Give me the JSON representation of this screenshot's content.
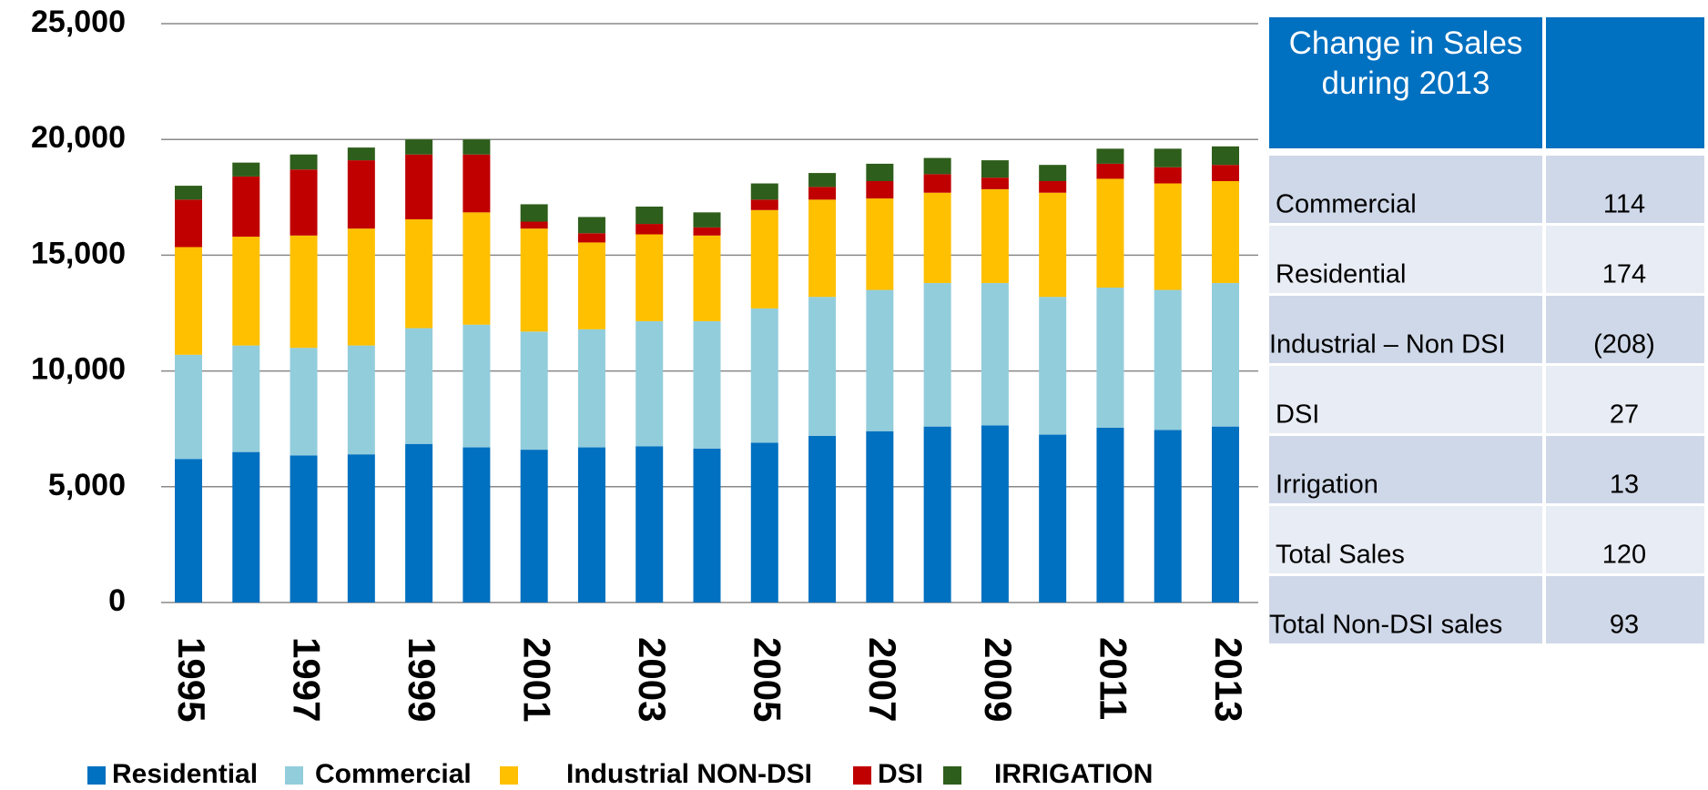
{
  "chart_data": {
    "type": "stacked_bar",
    "categories": [
      "1995",
      null,
      "1997",
      null,
      "1999",
      null,
      "2001",
      null,
      "2003",
      null,
      "2005",
      null,
      "2007",
      null,
      "2009",
      null,
      "2011",
      null,
      "2013"
    ],
    "series": [
      {
        "name": "Residential",
        "color": "#0070c0",
        "values": [
          6200,
          6500,
          6350,
          6400,
          6850,
          6700,
          6600,
          6700,
          6750,
          6650,
          6900,
          7200,
          7400,
          7600,
          7650,
          7250,
          7550,
          7450,
          7600
        ]
      },
      {
        "name": "Commercial",
        "color": "#92cddc",
        "values": [
          4500,
          4600,
          4650,
          4700,
          5000,
          5300,
          5100,
          5100,
          5400,
          5500,
          5800,
          6000,
          6100,
          6200,
          6150,
          5950,
          6050,
          6050,
          6200
        ]
      },
      {
        "name": "Industrial NON-DSI",
        "color": "#ffc000",
        "values": [
          4650,
          4700,
          4850,
          5050,
          4700,
          4850,
          4450,
          3750,
          3750,
          3700,
          4250,
          4200,
          3950,
          3900,
          4050,
          4500,
          4700,
          4600,
          4400
        ]
      },
      {
        "name": "DSI",
        "color": "#c00000",
        "values": [
          2050,
          2600,
          2850,
          2950,
          2800,
          2500,
          300,
          400,
          450,
          350,
          450,
          550,
          750,
          800,
          500,
          500,
          650,
          700,
          700
        ]
      },
      {
        "name": "IRRIGATION",
        "color": "#2e5e1b",
        "values": [
          600,
          600,
          650,
          550,
          650,
          650,
          750,
          700,
          750,
          650,
          700,
          600,
          750,
          700,
          750,
          700,
          650,
          800,
          800
        ]
      }
    ],
    "ylim": [
      0,
      25000
    ],
    "yticks": [
      {
        "value": 0,
        "label": "0"
      },
      {
        "value": 5000,
        "label": "5,000"
      },
      {
        "value": 10000,
        "label": "10,000"
      },
      {
        "value": 15000,
        "label": "15,000"
      },
      {
        "value": 20000,
        "label": "20,000"
      },
      {
        "value": 25000,
        "label": "25,000"
      }
    ],
    "grid": true
  },
  "table": {
    "header": "Change in Sales during 2013",
    "rows": [
      [
        "Commercial",
        "114"
      ],
      [
        "Residential",
        "174"
      ],
      [
        "Industrial – Non DSI",
        "(208)"
      ],
      [
        "DSI",
        "27"
      ],
      [
        "Irrigation",
        "13"
      ],
      [
        "Total Sales",
        "120"
      ],
      [
        "Total Non-DSI sales",
        "93"
      ]
    ]
  }
}
